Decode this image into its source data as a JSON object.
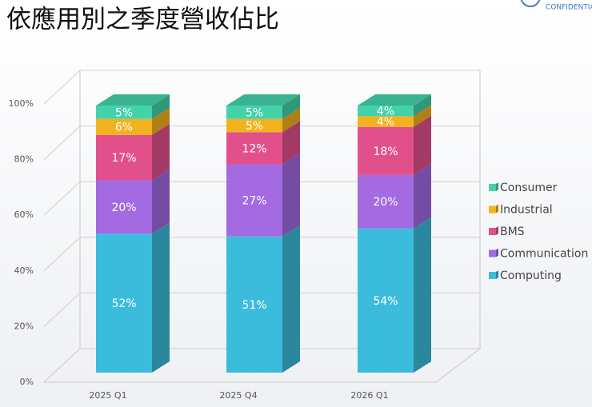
{
  "chart_data": {
    "type": "stacked-bar-3d",
    "title": "依應用別之季度營收佔比",
    "logo_text": "CONFIDENTIAL",
    "categories": [
      "2025 Q1",
      "2025 Q4",
      "2026 Q1"
    ],
    "series": [
      {
        "name": "Computing",
        "color": "#3cbcdc",
        "values": [
          52,
          51,
          54
        ],
        "value_labels": [
          "52%",
          "51%",
          "54%"
        ]
      },
      {
        "name": "Communication",
        "color": "#a36ae2",
        "values": [
          20,
          27,
          20
        ],
        "value_labels": [
          "20%",
          "27%",
          "20%"
        ]
      },
      {
        "name": "BMS",
        "color": "#e2508c",
        "values": [
          17,
          12,
          18
        ],
        "value_labels": [
          "17%",
          "12%",
          "18%"
        ]
      },
      {
        "name": "Industrial",
        "color": "#f2b21e",
        "values": [
          6,
          5,
          4
        ],
        "value_labels": [
          "6%",
          "5%",
          "4%"
        ]
      },
      {
        "name": "Consumer",
        "color": "#44d2aa",
        "values": [
          5,
          5,
          4
        ],
        "value_labels": [
          "5%",
          "5%",
          "4%"
        ]
      }
    ],
    "ylim": [
      0,
      100
    ],
    "yticks": [
      {
        "value": 0,
        "label": "0%"
      },
      {
        "value": 20,
        "label": "20%"
      },
      {
        "value": 40,
        "label": "40%"
      },
      {
        "value": 60,
        "label": "60%"
      },
      {
        "value": 80,
        "label": "80%"
      },
      {
        "value": 100,
        "label": "100%"
      }
    ],
    "grid": true
  }
}
